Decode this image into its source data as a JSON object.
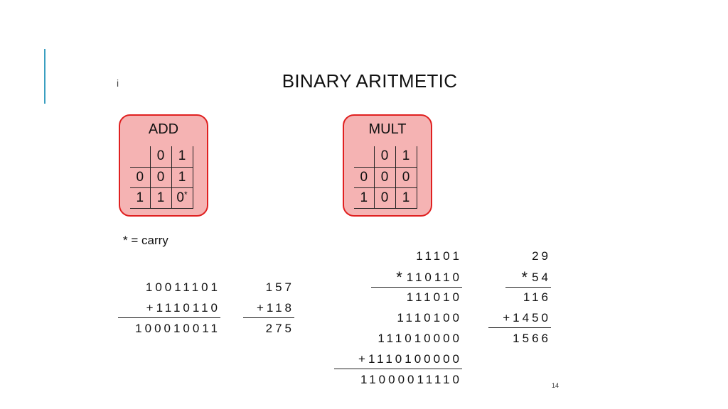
{
  "slide": {
    "title": "BINARY ARITMETIC",
    "marker": "i",
    "page_number": "14",
    "carry_note": "* = carry",
    "accent_color": "#3a9fc0"
  },
  "add_table": {
    "title": "ADD",
    "header": [
      "",
      "0",
      "1"
    ],
    "rows": [
      [
        "0",
        "0",
        "1"
      ],
      [
        "1",
        "1",
        "0"
      ]
    ],
    "carry_mark": "*",
    "box_fill": "#f5b3b3",
    "box_border": "#e02020"
  },
  "mult_table": {
    "title": "MULT",
    "header": [
      "",
      "0",
      "1"
    ],
    "rows": [
      [
        "0",
        "0",
        "0"
      ],
      [
        "1",
        "0",
        "1"
      ]
    ]
  },
  "add_binary": {
    "operand1": "10011101",
    "operator": "+",
    "operand2": "1110110",
    "result": "100010011"
  },
  "add_decimal": {
    "operand1": "157",
    "operator": "+",
    "operand2": "118",
    "result": "275"
  },
  "mult_binary": {
    "operand1": "11101",
    "operator": "*",
    "operand2": "110110",
    "partials": [
      "111010",
      "1110100",
      "111010000",
      "1110100000"
    ],
    "plus": "+",
    "result": "11000011110"
  },
  "mult_decimal": {
    "operand1": "29",
    "operator": "*",
    "operand2": "54",
    "partial1": "116",
    "plus": "+",
    "partial2": "1450",
    "result": "1566"
  }
}
